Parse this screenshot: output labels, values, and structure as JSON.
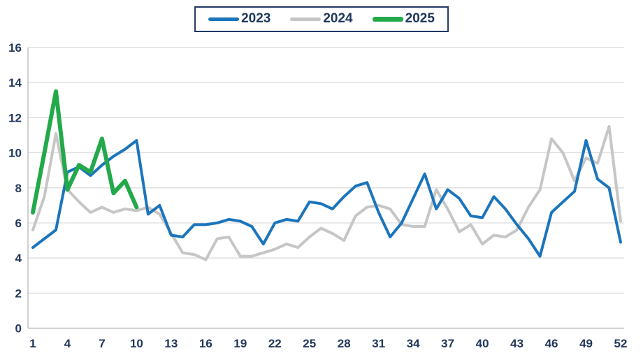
{
  "page": {
    "background": "#FFFFFF"
  },
  "legend": {
    "border_color": "#1F3864",
    "text_color": "#21375B"
  },
  "chart_data": {
    "type": "line",
    "title": "",
    "xlabel": "",
    "ylabel": "",
    "x_unit": "week",
    "x_range": [
      1,
      52
    ],
    "ylim": [
      0,
      16
    ],
    "x_ticks": [
      1,
      4,
      7,
      10,
      13,
      16,
      19,
      22,
      25,
      28,
      31,
      34,
      37,
      40,
      43,
      46,
      49,
      52
    ],
    "y_ticks": [
      0,
      2,
      4,
      6,
      8,
      10,
      12,
      14,
      16
    ],
    "grid": "horizontal",
    "legend_position": "top-center",
    "style": {
      "grid_color": "#D9D9D9",
      "axis_line_color": "#C0C0C0",
      "tick_label_color": "#21375B",
      "tick_font_size": 17
    },
    "series": [
      {
        "name": "2023",
        "color": "#1B75BC",
        "line_width": 4,
        "x_start": 1,
        "values": [
          4.6,
          5.1,
          5.6,
          8.9,
          9.2,
          8.7,
          9.3,
          9.8,
          10.2,
          10.7,
          6.5,
          7.0,
          5.3,
          5.2,
          5.9,
          5.9,
          6.0,
          6.2,
          6.1,
          5.8,
          4.8,
          6.0,
          6.2,
          6.1,
          7.2,
          7.1,
          6.8,
          7.5,
          8.1,
          8.3,
          6.6,
          5.2,
          6.0,
          7.4,
          8.8,
          6.8,
          7.9,
          7.4,
          6.4,
          6.3,
          7.5,
          6.8,
          5.9,
          5.1,
          4.1,
          6.6,
          7.2,
          7.8,
          10.7,
          8.5,
          8.0,
          4.9
        ]
      },
      {
        "name": "2024",
        "color": "#C6C6C6",
        "line_width": 4,
        "x_start": 1,
        "values": [
          5.6,
          7.5,
          11.1,
          7.9,
          7.2,
          6.6,
          6.9,
          6.6,
          6.8,
          6.7,
          6.9,
          6.5,
          5.4,
          4.3,
          4.2,
          3.9,
          5.1,
          5.2,
          4.1,
          4.1,
          4.3,
          4.5,
          4.8,
          4.6,
          5.2,
          5.7,
          5.4,
          5.0,
          6.4,
          6.9,
          7.0,
          6.8,
          5.9,
          5.8,
          5.8,
          7.9,
          6.8,
          5.5,
          5.9,
          4.8,
          5.3,
          5.2,
          5.6,
          6.9,
          7.9,
          10.8,
          10.0,
          8.4,
          9.7,
          9.4,
          11.5,
          6.1
        ]
      },
      {
        "name": "2025",
        "color": "#23A94A",
        "line_width": 6,
        "x_start": 1,
        "values": [
          6.6,
          10.0,
          13.5,
          7.9,
          9.3,
          8.9,
          10.8,
          7.7,
          8.4,
          6.9
        ]
      }
    ]
  }
}
